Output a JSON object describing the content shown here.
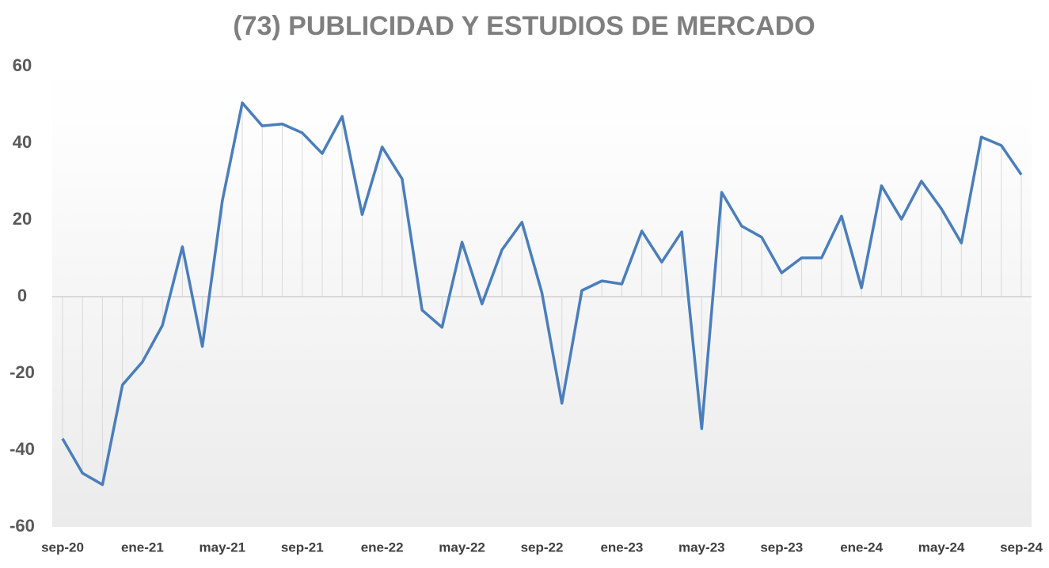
{
  "chart_data": {
    "type": "line",
    "title": "(73) PUBLICIDAD Y ESTUDIOS DE MERCADO",
    "categories": [
      "sep-20",
      null,
      null,
      null,
      "ene-21",
      null,
      null,
      null,
      "may-21",
      null,
      null,
      null,
      "sep-21",
      null,
      null,
      null,
      "ene-22",
      null,
      null,
      null,
      "may-22",
      null,
      null,
      null,
      "sep-22",
      null,
      null,
      null,
      "ene-23",
      null,
      null,
      null,
      "may-23",
      null,
      null,
      null,
      "sep-23",
      null,
      null,
      null,
      "ene-24",
      null,
      null,
      null,
      "may-24",
      null,
      null,
      null,
      "sep-24"
    ],
    "values": [
      -37,
      -46,
      -49,
      -23,
      -17,
      -7.5,
      13,
      -13,
      25,
      50.5,
      44.5,
      45,
      42.7,
      37.3,
      47,
      21.4,
      39,
      30.7,
      -3.5,
      -8,
      14.2,
      -1.9,
      12.2,
      19.4,
      1,
      -27.8,
      1.6,
      4.1,
      3.3,
      17.1,
      9,
      16.9,
      -34.4,
      27.2,
      18.4,
      15.5,
      6.2,
      10.1,
      10.1,
      21,
      2.3,
      28.9,
      20.2,
      30.1,
      22.9,
      14,
      41.6,
      39.4,
      31.8
    ],
    "color": "#4a7ebb",
    "ylim": [
      -60,
      60
    ],
    "yticks": [
      -60,
      -40,
      -20,
      0,
      20,
      40,
      60
    ]
  }
}
